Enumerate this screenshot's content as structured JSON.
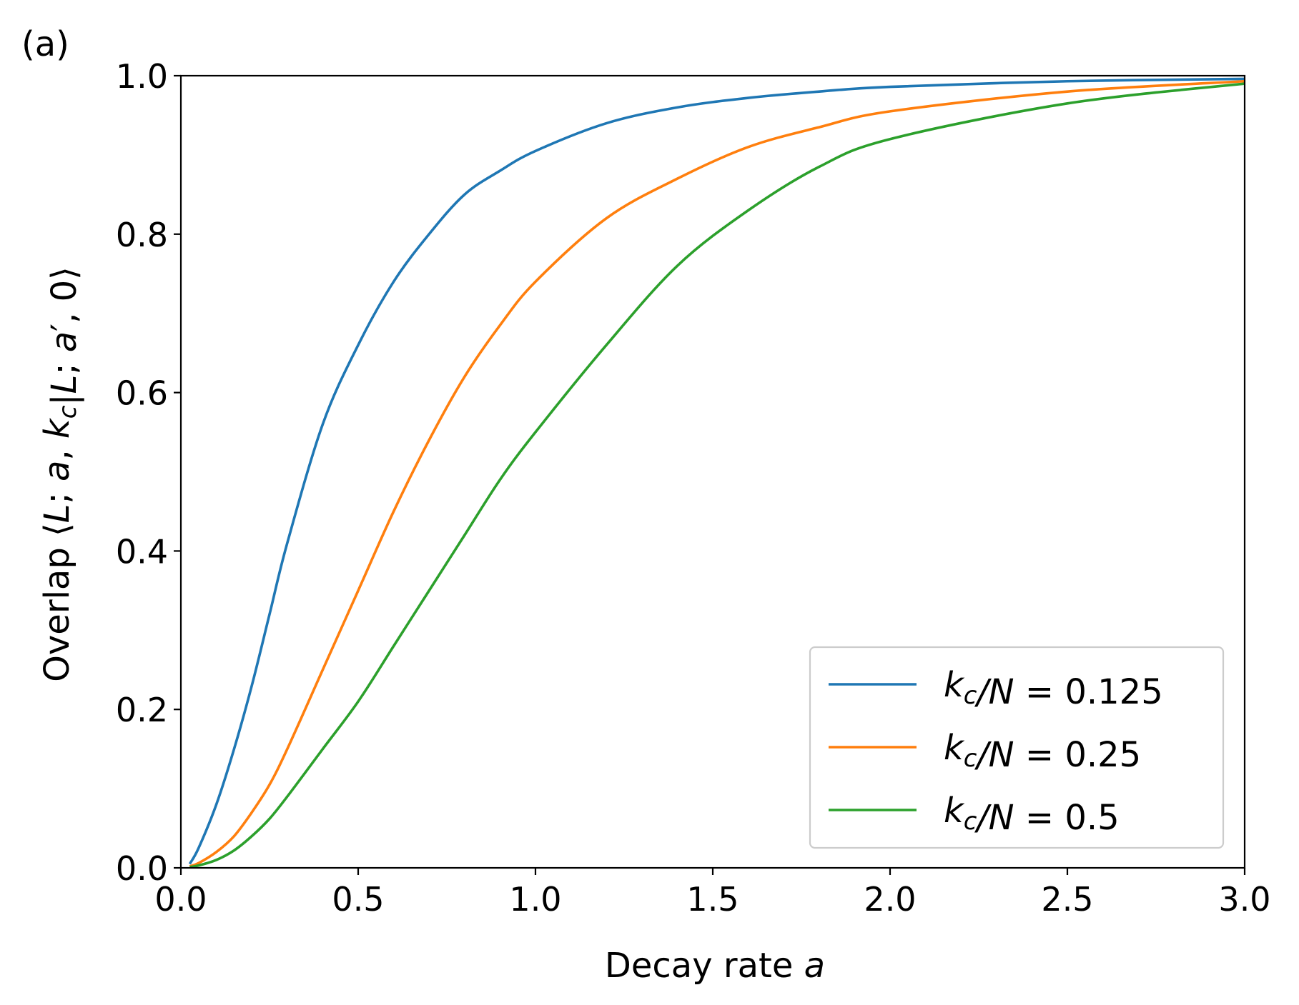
{
  "panel_label": "(a)",
  "chart_data": {
    "type": "line",
    "xlabel_parts": [
      [
        "Decay rate ",
        "n"
      ],
      [
        "a",
        "i"
      ]
    ],
    "ylabel_parts": [
      [
        "Overlap ⟨",
        "n"
      ],
      [
        "L",
        "i"
      ],
      [
        "; ",
        "n"
      ],
      [
        "a",
        "i"
      ],
      [
        ", ",
        "n"
      ],
      [
        "k",
        "i"
      ],
      [
        "c",
        "sub"
      ],
      [
        "|",
        "n"
      ],
      [
        "L",
        "i"
      ],
      [
        "; ",
        "n"
      ],
      [
        "a",
        "i"
      ],
      [
        "′, 0⟩",
        "n"
      ]
    ],
    "xlim": [
      0,
      3
    ],
    "ylim": [
      0,
      1
    ],
    "xticks": [
      "0.0",
      "0.5",
      "1.0",
      "1.5",
      "2.0",
      "2.5",
      "3.0"
    ],
    "yticks": [
      "0.0",
      "0.2",
      "0.4",
      "0.6",
      "0.8",
      "1.0"
    ],
    "grid": false,
    "legend_position": "bottom-right",
    "x": [
      0.025,
      0.05,
      0.1,
      0.15,
      0.2,
      0.25,
      0.3,
      0.4,
      0.5,
      0.6,
      0.7,
      0.8,
      0.9,
      1.0,
      1.2,
      1.4,
      1.6,
      1.8,
      2.0,
      2.5,
      3.0
    ],
    "series": [
      {
        "label_parts": [
          [
            "k",
            "i"
          ],
          [
            "c",
            "sub"
          ],
          [
            "/N",
            "i"
          ],
          [
            " = 0.125",
            "n"
          ]
        ],
        "color": "#1f77b4",
        "values": [
          0.005,
          0.025,
          0.08,
          0.15,
          0.23,
          0.32,
          0.41,
          0.56,
          0.66,
          0.74,
          0.8,
          0.85,
          0.88,
          0.905,
          0.94,
          0.96,
          0.972,
          0.98,
          0.986,
          0.993,
          0.996
        ]
      },
      {
        "label_parts": [
          [
            "k",
            "i"
          ],
          [
            "c",
            "sub"
          ],
          [
            "/N",
            "i"
          ],
          [
            " = 0.25",
            "n"
          ]
        ],
        "color": "#ff7f0e",
        "values": [
          0.002,
          0.006,
          0.02,
          0.04,
          0.07,
          0.105,
          0.15,
          0.25,
          0.35,
          0.45,
          0.54,
          0.62,
          0.685,
          0.74,
          0.82,
          0.87,
          0.91,
          0.935,
          0.955,
          0.98,
          0.993
        ]
      },
      {
        "label_parts": [
          [
            "k",
            "i"
          ],
          [
            "c",
            "sub"
          ],
          [
            "/N",
            "i"
          ],
          [
            " = 0.5",
            "n"
          ]
        ],
        "color": "#2ca02c",
        "values": [
          0.001,
          0.003,
          0.01,
          0.022,
          0.04,
          0.062,
          0.09,
          0.15,
          0.21,
          0.28,
          0.35,
          0.42,
          0.49,
          0.55,
          0.66,
          0.76,
          0.83,
          0.885,
          0.92,
          0.965,
          0.99
        ]
      }
    ]
  }
}
